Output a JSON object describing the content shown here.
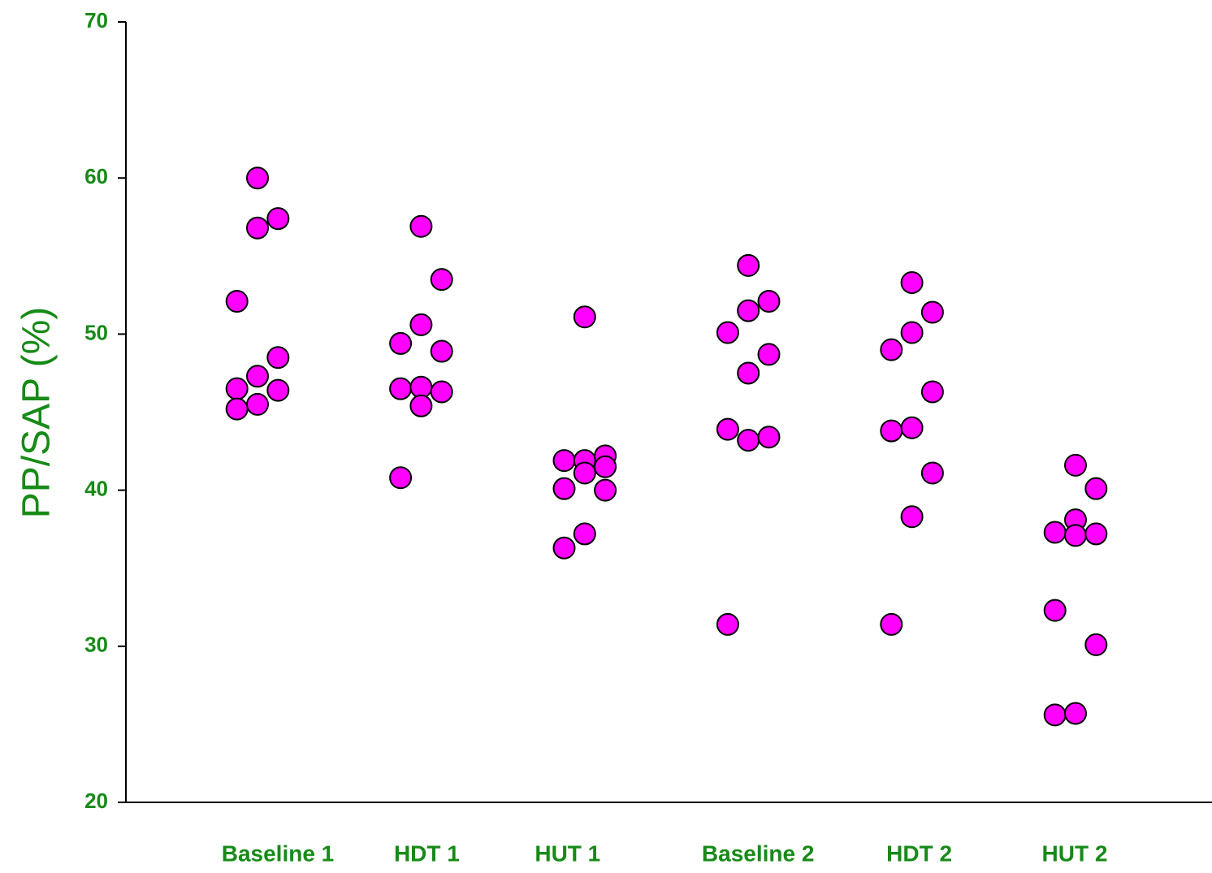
{
  "chart_data": {
    "type": "strip",
    "y_label": "PP/SAP (%)",
    "categories": [
      "Baseline 1",
      "HDT 1",
      "HUT 1",
      "Baseline 2",
      "HDT 2",
      "HUT 2"
    ],
    "values": [
      [
        52.1,
        60.0,
        56.8,
        57.4,
        46.5,
        47.3,
        48.5,
        46.4,
        45.2,
        45.5
      ],
      [
        56.9,
        53.5,
        49.4,
        50.6,
        48.9,
        46.5,
        46.6,
        46.3,
        45.4,
        40.8
      ],
      [
        51.1,
        41.9,
        41.9,
        42.2,
        41.5,
        41.1,
        40.1,
        40.0,
        37.2,
        36.3
      ],
      [
        54.4,
        52.1,
        51.5,
        50.1,
        48.7,
        47.5,
        43.9,
        43.2,
        43.4,
        31.4
      ],
      [
        53.3,
        51.4,
        50.1,
        49.0,
        46.3,
        43.8,
        44.0,
        41.1,
        38.3,
        31.4
      ],
      [
        41.6,
        40.1,
        38.1,
        37.3,
        37.1,
        37.2,
        32.3,
        30.1,
        25.6,
        25.7
      ]
    ],
    "color": "#ff00ff",
    "text_color": "#178a17",
    "ylim": [
      20,
      70
    ],
    "yticks": [
      20,
      30,
      40,
      50,
      60,
      70
    ]
  }
}
